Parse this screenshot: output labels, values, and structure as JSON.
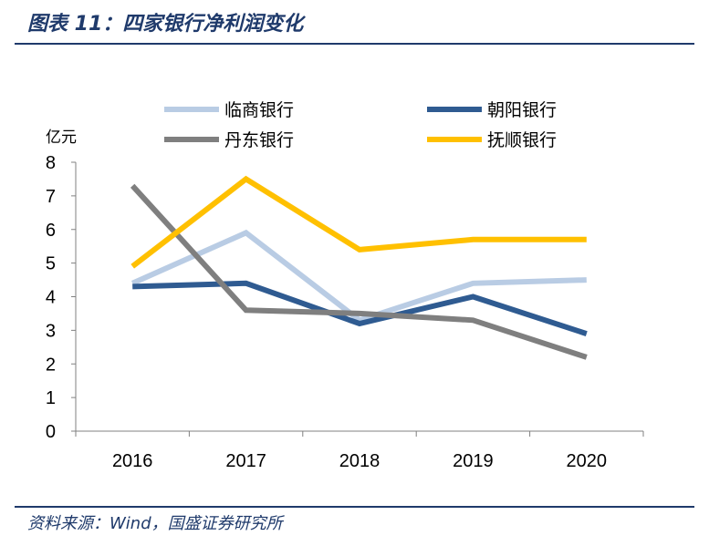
{
  "header": {
    "title": "图表 11：四家银行净利润变化"
  },
  "footer": {
    "source": "资料来源：Wind，国盛证券研究所"
  },
  "chart_data": {
    "type": "line",
    "title": "",
    "ylabel": "亿元",
    "xlabel": "",
    "categories": [
      "2016",
      "2017",
      "2018",
      "2019",
      "2020"
    ],
    "ylim": [
      0,
      8
    ],
    "yticks": [
      0,
      1,
      2,
      3,
      4,
      5,
      6,
      7,
      8
    ],
    "grid": false,
    "legend_position": "top",
    "series": [
      {
        "name": "临商银行",
        "color": "#b9cce4",
        "values": [
          4.4,
          5.9,
          3.3,
          4.4,
          4.5
        ]
      },
      {
        "name": "朝阳银行",
        "color": "#2f5b91",
        "values": [
          4.3,
          4.4,
          3.2,
          4.0,
          2.9
        ]
      },
      {
        "name": "丹东银行",
        "color": "#7f7f7f",
        "values": [
          7.3,
          3.6,
          3.5,
          3.3,
          2.2
        ]
      },
      {
        "name": "抚顺银行",
        "color": "#ffc000",
        "values": [
          4.9,
          7.5,
          5.4,
          5.7,
          5.7
        ]
      }
    ]
  }
}
